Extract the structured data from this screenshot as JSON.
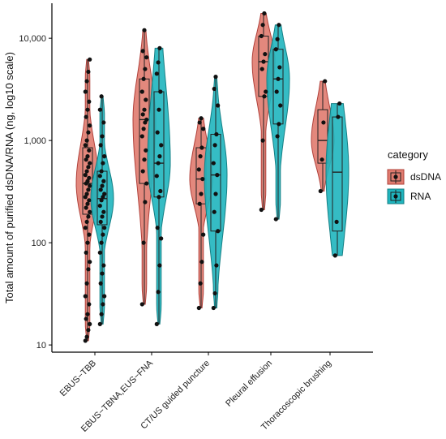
{
  "chart_data": {
    "type": "violin",
    "ylabel": "Total amount of purified dsDNA/RNA (ng, log10 scale)",
    "yscale": "log10",
    "ylim": [
      8.5,
      22000
    ],
    "y_ticks": [
      10,
      100,
      1000,
      10000
    ],
    "y_tick_labels": [
      "10",
      "100",
      "1,000",
      "10,000"
    ],
    "categories": [
      "EBUS−TBB",
      "EBUS−TBNA,EUS−FNA",
      "CT/US guided puncture",
      "Pleural effusion",
      "Thoracoscopic brushing"
    ],
    "legend": {
      "title": "category",
      "position": "right",
      "entries": [
        "dsDNA",
        "RNA"
      ]
    },
    "colors": {
      "dsDNA": "#e07b6f",
      "RNA": "#1fb5be",
      "dsDNA_outline": "#b0403a",
      "RNA_outline": "#157f84",
      "points": "#111111"
    },
    "series": [
      {
        "name": "dsDNA",
        "groups": [
          {
            "category": "EBUS−TBB",
            "min": 11,
            "q1": 190,
            "median": 380,
            "q3": 850,
            "max": 6200,
            "points": [
              11,
              12,
              14,
              16,
              18,
              20,
              25,
              30,
              40,
              55,
              65,
              80,
              100,
              120,
              140,
              160,
              180,
              200,
              220,
              240,
              260,
              280,
              300,
              330,
              360,
              380,
              400,
              430,
              460,
              500,
              550,
              600,
              650,
              700,
              800,
              900,
              1000,
              1200,
              1400,
              1700,
              2000,
              2400,
              3000,
              3800,
              4700,
              6200
            ]
          },
          {
            "category": "EBUS−TBNA,EUS−FNA",
            "min": 25,
            "q1": 380,
            "median": 1600,
            "q3": 4000,
            "max": 12000,
            "points": [
              25,
              100,
              250,
              380,
              500,
              650,
              800,
              1100,
              1300,
              1500,
              1600,
              1800,
              2000,
              2500,
              3000,
              4000,
              5000,
              6500,
              7500,
              12000
            ]
          },
          {
            "category": "CT/US guided puncture",
            "min": 23,
            "q1": 240,
            "median": 420,
            "q3": 850,
            "max": 1650,
            "points": [
              23,
              40,
              65,
              120,
              240,
              300,
              420,
              520,
              700,
              850,
              1300,
              1500,
              1650
            ]
          },
          {
            "category": "Pleural effusion",
            "min": 210,
            "q1": 2700,
            "median": 5900,
            "q3": 10500,
            "max": 17500,
            "points": [
              210,
              1000,
              2700,
              3000,
              5000,
              5900,
              7000,
              10500,
              13500,
              17500
            ]
          },
          {
            "category": "Thoracoscopic brushing",
            "min": 320,
            "q1": 600,
            "median": 1000,
            "q3": 2000,
            "max": 3800,
            "points": [
              320,
              650,
              1500,
              3800
            ]
          }
        ]
      },
      {
        "name": "RNA",
        "groups": [
          {
            "category": "EBUS−TBB",
            "min": 16,
            "q1": 150,
            "median": 270,
            "q3": 500,
            "max": 2700,
            "points": [
              16,
              20,
              25,
              30,
              40,
              50,
              60,
              80,
              100,
              120,
              140,
              160,
              180,
              200,
              230,
              260,
              280,
              300,
              330,
              360,
              400,
              450,
              500,
              600,
              700,
              900,
              1100,
              1500,
              2000,
              2700
            ]
          },
          {
            "category": "EBUS−TBNA,EUS−FNA",
            "min": 16,
            "q1": 280,
            "median": 600,
            "q3": 3000,
            "max": 8000,
            "points": [
              16,
              33,
              60,
              110,
              140,
              280,
              320,
              450,
              600,
              700,
              900,
              1200,
              2000,
              3000,
              4500,
              5800,
              8000
            ]
          },
          {
            "category": "CT/US guided puncture",
            "min": 23,
            "q1": 130,
            "median": 460,
            "q3": 1150,
            "max": 4200,
            "points": [
              23,
              32,
              60,
              130,
              200,
              300,
              460,
              600,
              900,
              1150,
              2200,
              3200,
              4200
            ]
          },
          {
            "category": "Pleural effusion",
            "min": 170,
            "q1": 1450,
            "median": 4000,
            "q3": 7800,
            "max": 13500,
            "points": [
              170,
              1100,
              1450,
              2200,
              3000,
              4000,
              5200,
              7800,
              9800,
              13500
            ]
          },
          {
            "category": "Thoracoscopic brushing",
            "min": 75,
            "q1": 130,
            "median": 490,
            "q3": 1700,
            "max": 2300,
            "points": [
              75,
              160,
              1700,
              2300
            ]
          }
        ]
      }
    ]
  }
}
